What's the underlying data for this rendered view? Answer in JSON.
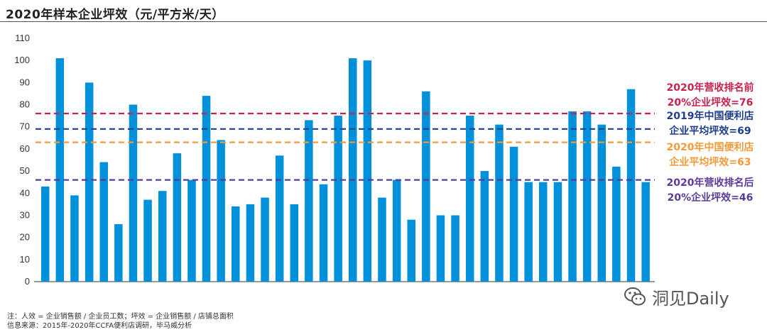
{
  "chart_data": {
    "type": "bar",
    "title": "2020年样本企业坪效（元/平方米/天）",
    "ylim": [
      0,
      110
    ],
    "yticks": [
      0,
      10,
      20,
      30,
      40,
      50,
      60,
      70,
      80,
      90,
      100,
      110
    ],
    "bar_color": "#0091DA",
    "grid": false,
    "values": [
      43,
      101,
      39,
      90,
      54,
      26,
      80,
      37,
      41,
      58,
      46,
      84,
      64,
      34,
      35,
      38,
      57,
      35,
      73,
      44,
      75,
      101,
      100,
      38,
      46,
      28,
      86,
      30,
      30,
      75,
      50,
      71,
      61,
      45,
      45,
      45,
      77,
      77,
      71,
      52,
      87,
      45
    ],
    "reference_lines": [
      {
        "value": 76,
        "color": "#C8224E",
        "label_line1": "2020年营收排名前",
        "label_line2": "20%企业坪效=76"
      },
      {
        "value": 69,
        "color": "#1F3E8C",
        "label_line1": "2019年中国便利店",
        "label_line2": "企业平均坪效=69"
      },
      {
        "value": 63,
        "color": "#F39A3B",
        "label_line1": "2020年中国便利店",
        "label_line2": "企业平均坪效=63"
      },
      {
        "value": 46,
        "color": "#5B3C9A",
        "label_line1": "2020年营收排名后",
        "label_line2": "20%企业坪效=46"
      }
    ]
  },
  "notes": {
    "line1": "注：人效 = 企业销售额 / 企业员工数；坪效 = 企业销售额 / 店铺总面积",
    "line2": "信息来源：2015年-2020年CCFA便利店调研，毕马威分析"
  },
  "watermark": {
    "text": "洞见Daily",
    "icon": "wechat-icon"
  }
}
